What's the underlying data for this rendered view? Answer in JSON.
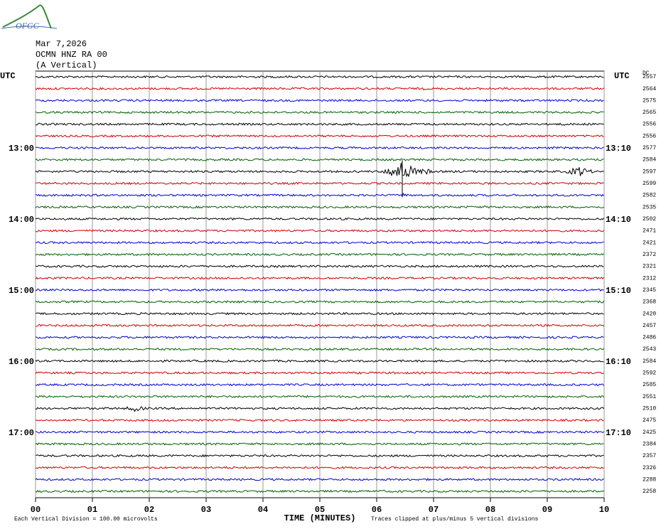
{
  "header": {
    "logo": "OFGC",
    "date": "Mar 7,2026",
    "station": "OCMN HNZ RA 00",
    "component": "(A Vertical)"
  },
  "axes": {
    "left_label": "UTC",
    "right_label": "UTC",
    "dc_label": "DC",
    "x_label": "TIME (MINUTES)",
    "xticks": [
      "00",
      "01",
      "02",
      "03",
      "04",
      "05",
      "06",
      "07",
      "08",
      "09",
      "10"
    ]
  },
  "trace_colors": [
    "#000000",
    "#d00000",
    "#0000d0",
    "#006000"
  ],
  "rows": [
    {
      "dc": 2557
    },
    {
      "dc": 2564
    },
    {
      "dc": 2575
    },
    {
      "dc": 2565
    },
    {
      "dc": 2556
    },
    {
      "dc": 2556
    },
    {
      "left": "13:00",
      "right": "13:10",
      "dc": 2577
    },
    {
      "dc": 2584
    },
    {
      "dc": 2597
    },
    {
      "dc": 2599
    },
    {
      "dc": 2582
    },
    {
      "dc": 2535
    },
    {
      "left": "14:00",
      "right": "14:10",
      "dc": 2502
    },
    {
      "dc": 2471
    },
    {
      "dc": 2421
    },
    {
      "dc": 2372
    },
    {
      "dc": 2321
    },
    {
      "dc": 2312
    },
    {
      "left": "15:00",
      "right": "15:10",
      "dc": 2345
    },
    {
      "dc": 2368
    },
    {
      "dc": 2420
    },
    {
      "dc": 2457
    },
    {
      "dc": 2486
    },
    {
      "dc": 2543
    },
    {
      "left": "16:00",
      "right": "16:10",
      "dc": 2584
    },
    {
      "dc": 2592
    },
    {
      "dc": 2585
    },
    {
      "dc": 2551
    },
    {
      "dc": 2510
    },
    {
      "dc": 2475
    },
    {
      "left": "17:00",
      "right": "17:10",
      "dc": 2425
    },
    {
      "dc": 2384
    },
    {
      "dc": 2357
    },
    {
      "dc": 2326
    },
    {
      "dc": 2288
    },
    {
      "dc": 2258
    }
  ],
  "footer": {
    "scale": "Each Vertical Division =  100.00 microvolts",
    "clip": "Traces clipped at plus/minus 5 vertical divisions"
  }
}
